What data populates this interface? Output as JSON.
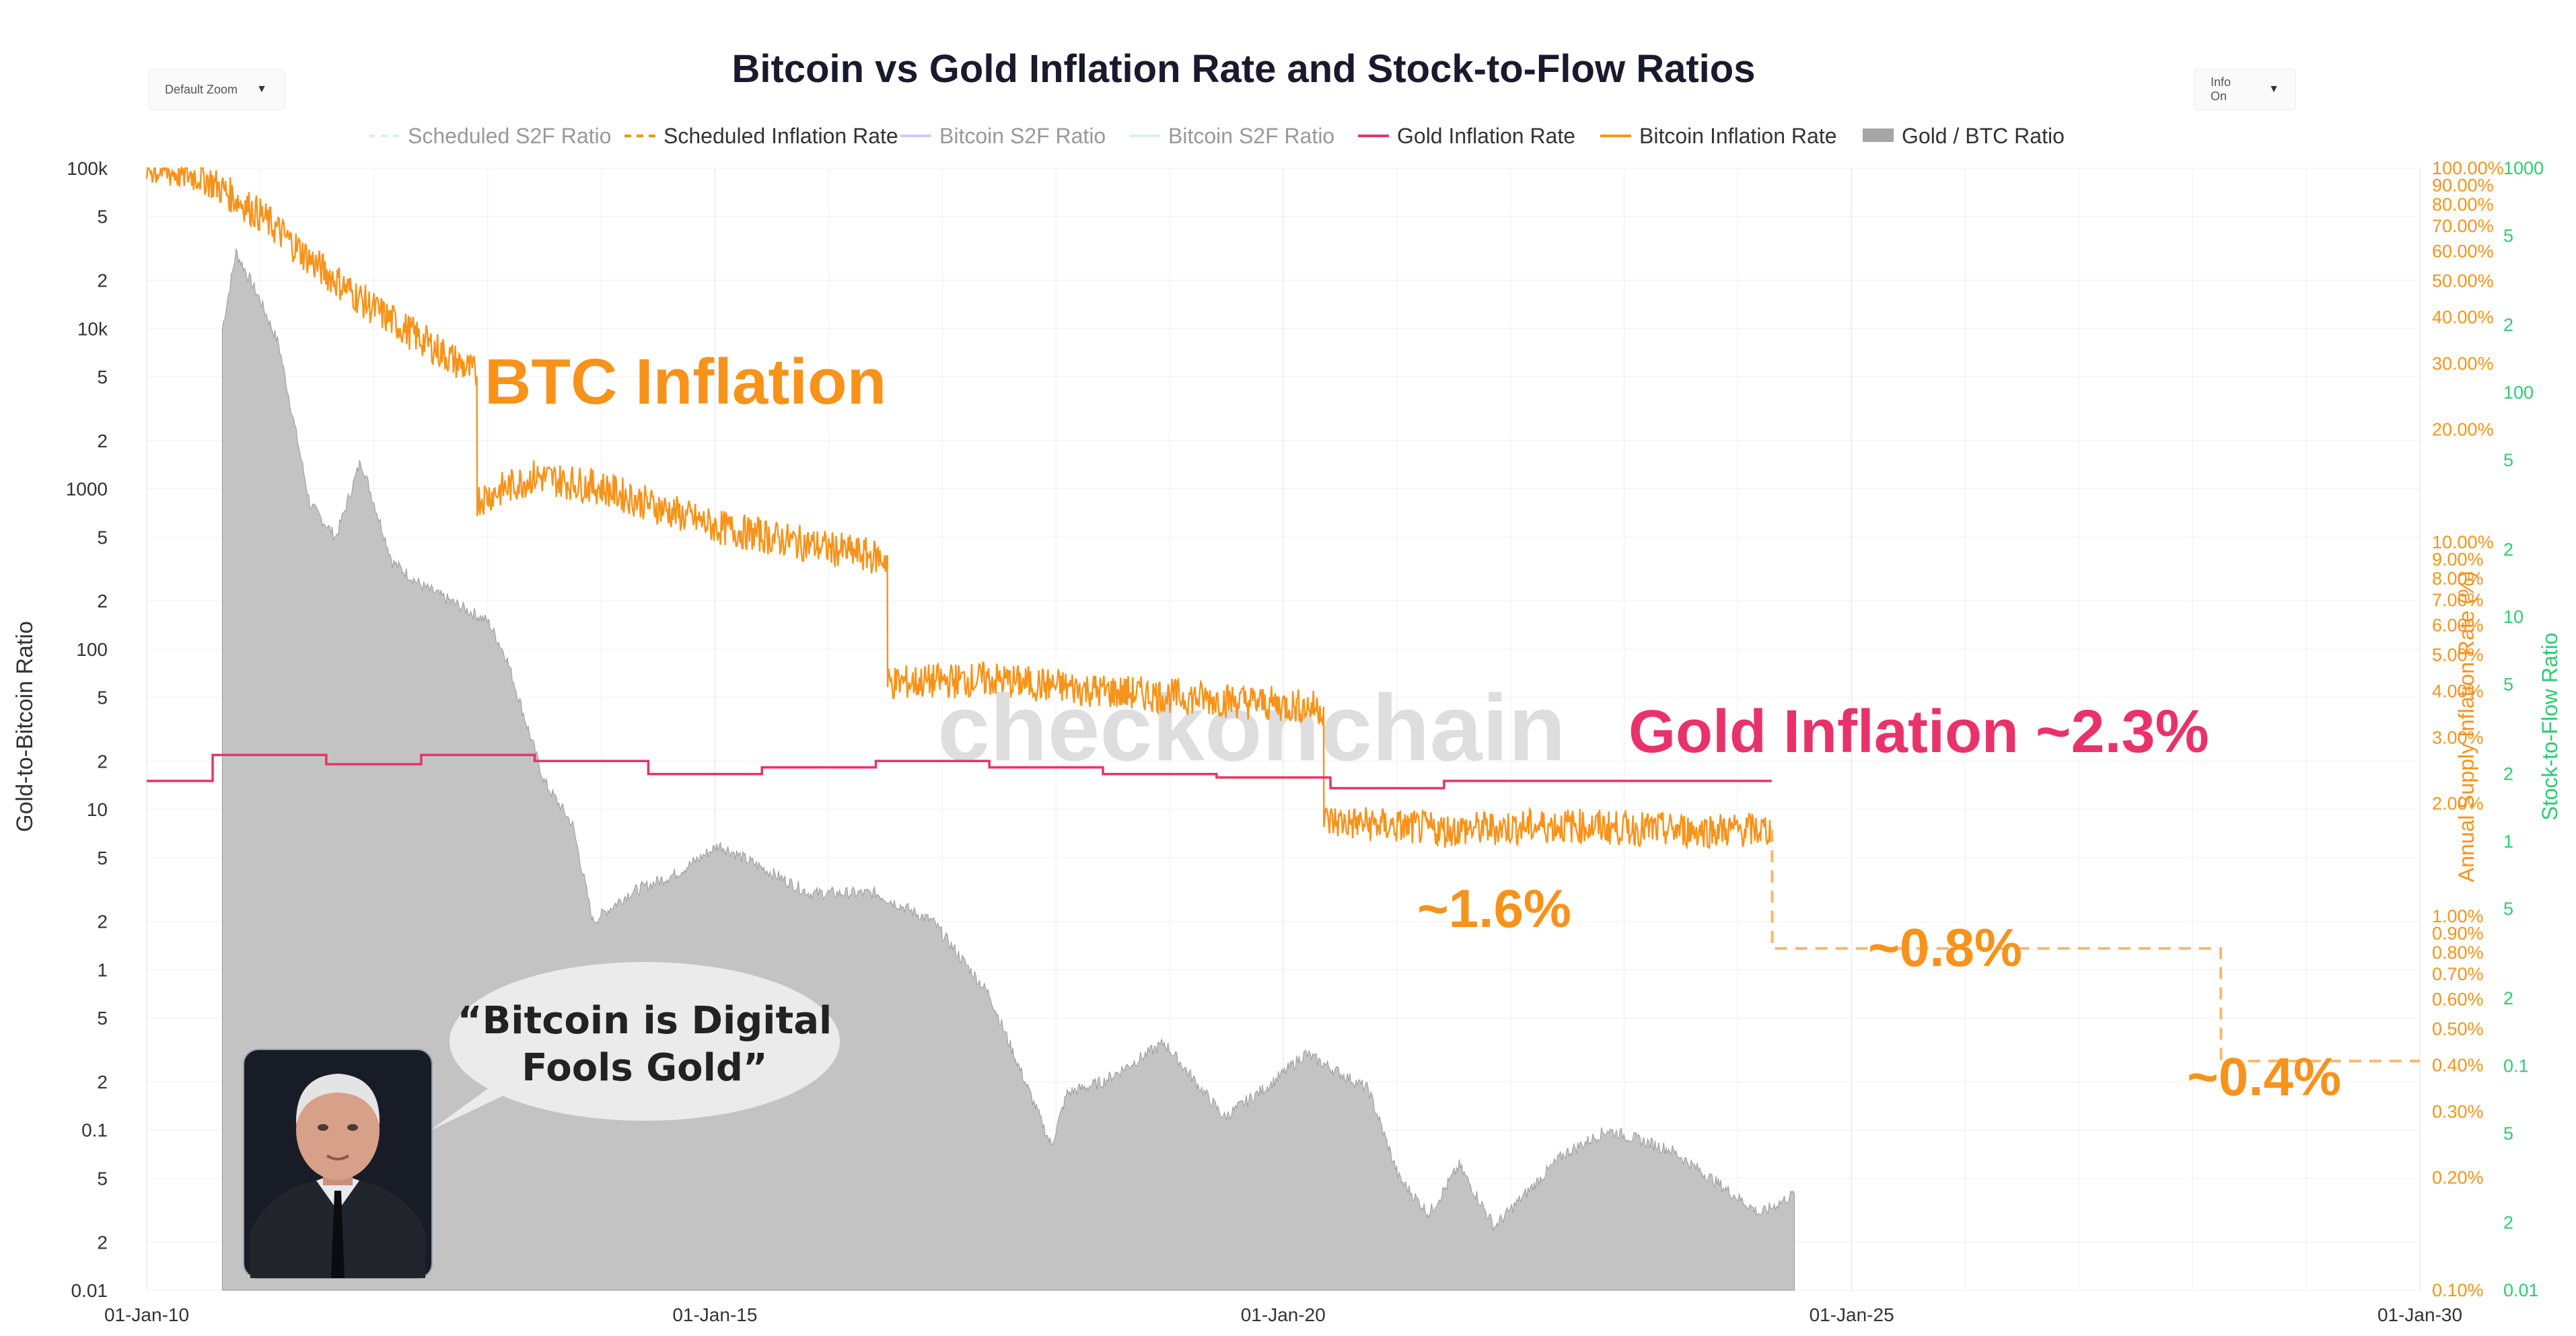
{
  "header": {
    "title": "Bitcoin vs Gold Inflation Rate and Stock-to-Flow Ratios",
    "zoom_label": "Default Zoom",
    "info_label": "Info On",
    "watermark": "checkonchain"
  },
  "legend": [
    {
      "name": "Scheduled S2F Ratio",
      "color": "#a8e6cf",
      "style": "dash",
      "active": false
    },
    {
      "name": "Scheduled Inflation Rate",
      "color": "#f7931a",
      "style": "dash",
      "active": true
    },
    {
      "name": "Bitcoin S2F Ratio",
      "color": "#9b8cf0",
      "style": "line",
      "active": false
    },
    {
      "name": "Bitcoin S2F Ratio",
      "color": "#a8e6cf",
      "style": "line",
      "active": false
    },
    {
      "name": "Gold Inflation Rate",
      "color": "#e8336a",
      "style": "line",
      "active": true
    },
    {
      "name": "Bitcoin Inflation Rate",
      "color": "#f7931a",
      "style": "line",
      "active": true
    },
    {
      "name": "Gold / BTC Ratio",
      "color": "#a6a6a6",
      "style": "area",
      "active": true
    }
  ],
  "annotations": {
    "btc_inflation": "BTC Inflation",
    "gold_inflation": "Gold Inflation ~2.3%",
    "pct_16": "~1.6%",
    "pct_08": "~0.8%",
    "pct_04": "~0.4%",
    "quote_line1": "“Bitcoin is Digital",
    "quote_line2": "Fools Gold”"
  },
  "colors": {
    "btc": "#f7931a",
    "gold_rate": "#e8336a",
    "ratio_fill": "#c3c3c3",
    "s2f_axis": "#2ecc71",
    "grid": "#efefef"
  },
  "chart_data": {
    "type": "line",
    "title": "Bitcoin vs Gold Inflation Rate and Stock-to-Flow Ratios",
    "x_ticks": [
      "01-Jan-10",
      "01-Jan-15",
      "01-Jan-20",
      "01-Jan-25",
      "01-Jan-30"
    ],
    "x_range": [
      "2010-01-01",
      "2030-01-01"
    ],
    "left_axis": {
      "label": "Gold-to-Bitcoin Ratio",
      "scale": "log",
      "range": [
        0.01,
        100000
      ],
      "ticks": [
        {
          "v": 100000,
          "t": "100k"
        },
        {
          "v": 50000,
          "t": "5"
        },
        {
          "v": 20000,
          "t": "2"
        },
        {
          "v": 10000,
          "t": "10k"
        },
        {
          "v": 5000,
          "t": "5"
        },
        {
          "v": 2000,
          "t": "2"
        },
        {
          "v": 1000,
          "t": "1000"
        },
        {
          "v": 500,
          "t": "5"
        },
        {
          "v": 200,
          "t": "2"
        },
        {
          "v": 100,
          "t": "100"
        },
        {
          "v": 50,
          "t": "5"
        },
        {
          "v": 20,
          "t": "2"
        },
        {
          "v": 10,
          "t": "10"
        },
        {
          "v": 5,
          "t": "5"
        },
        {
          "v": 2,
          "t": "2"
        },
        {
          "v": 1,
          "t": "1"
        },
        {
          "v": 0.5,
          "t": "5"
        },
        {
          "v": 0.2,
          "t": "2"
        },
        {
          "v": 0.1,
          "t": "0.1"
        },
        {
          "v": 0.05,
          "t": "5"
        },
        {
          "v": 0.02,
          "t": "2"
        },
        {
          "v": 0.01,
          "t": "0.01"
        }
      ]
    },
    "right_axis_inflation": {
      "label": "Annual Supply Inflation Rate (%)",
      "scale": "log",
      "range": [
        0.1,
        100
      ],
      "ticks": [
        {
          "v": 100,
          "t": "100.00%"
        },
        {
          "v": 90,
          "t": "90.00%"
        },
        {
          "v": 80,
          "t": "80.00%"
        },
        {
          "v": 70,
          "t": "70.00%"
        },
        {
          "v": 60,
          "t": "60.00%"
        },
        {
          "v": 50,
          "t": "50.00%"
        },
        {
          "v": 40,
          "t": "40.00%"
        },
        {
          "v": 30,
          "t": "30.00%"
        },
        {
          "v": 20,
          "t": "20.00%"
        },
        {
          "v": 10,
          "t": "10.00%"
        },
        {
          "v": 9,
          "t": "9.00%"
        },
        {
          "v": 8,
          "t": "8.00%"
        },
        {
          "v": 7,
          "t": "7.00%"
        },
        {
          "v": 6,
          "t": "6.00%"
        },
        {
          "v": 5,
          "t": "5.00%"
        },
        {
          "v": 4,
          "t": "4.00%"
        },
        {
          "v": 3,
          "t": "3.00%"
        },
        {
          "v": 2,
          "t": "2.00%"
        },
        {
          "v": 1,
          "t": "1.00%"
        },
        {
          "v": 0.9,
          "t": "0.90%"
        },
        {
          "v": 0.8,
          "t": "0.80%"
        },
        {
          "v": 0.7,
          "t": "0.70%"
        },
        {
          "v": 0.6,
          "t": "0.60%"
        },
        {
          "v": 0.5,
          "t": "0.50%"
        },
        {
          "v": 0.4,
          "t": "0.40%"
        },
        {
          "v": 0.3,
          "t": "0.30%"
        },
        {
          "v": 0.2,
          "t": "0.20%"
        },
        {
          "v": 0.1,
          "t": "0.10%"
        }
      ]
    },
    "right_axis_s2f": {
      "label": "Stock-to-Flow Ratio",
      "scale": "log",
      "range": [
        0.01,
        1000
      ],
      "ticks": [
        {
          "v": 1000,
          "t": "1000"
        },
        {
          "v": 500,
          "t": "5"
        },
        {
          "v": 200,
          "t": "2"
        },
        {
          "v": 100,
          "t": "100"
        },
        {
          "v": 50,
          "t": "5"
        },
        {
          "v": 20,
          "t": "2"
        },
        {
          "v": 10,
          "t": "10"
        },
        {
          "v": 5,
          "t": "5"
        },
        {
          "v": 2,
          "t": "2"
        },
        {
          "v": 1,
          "t": "1"
        },
        {
          "v": 0.5,
          "t": "5"
        },
        {
          "v": 0.2,
          "t": "2"
        },
        {
          "v": 0.1,
          "t": "0.1"
        },
        {
          "v": 0.05,
          "t": "5"
        },
        {
          "v": 0.02,
          "t": "2"
        },
        {
          "v": 0.01,
          "t": "0.01"
        }
      ]
    },
    "series": [
      {
        "name": "Gold / BTC Ratio",
        "type": "area",
        "axis": "left",
        "points": [
          [
            "2010-09-01",
            10000
          ],
          [
            "2010-10-15",
            30000
          ],
          [
            "2011-01-01",
            15000
          ],
          [
            "2011-03-01",
            8000
          ],
          [
            "2011-06-10",
            800
          ],
          [
            "2011-09-01",
            500
          ],
          [
            "2011-11-20",
            1500
          ],
          [
            "2012-03-01",
            350
          ],
          [
            "2012-06-01",
            250
          ],
          [
            "2012-09-01",
            200
          ],
          [
            "2013-01-01",
            150
          ],
          [
            "2013-03-01",
            90
          ],
          [
            "2013-04-10",
            50
          ],
          [
            "2013-07-01",
            15
          ],
          [
            "2013-10-01",
            8
          ],
          [
            "2013-12-05",
            2
          ],
          [
            "2014-04-01",
            3
          ],
          [
            "2014-09-01",
            4
          ],
          [
            "2015-01-15",
            6
          ],
          [
            "2015-11-01",
            3
          ],
          [
            "2016-06-01",
            3
          ],
          [
            "2016-12-01",
            2
          ],
          [
            "2017-06-01",
            0.7
          ],
          [
            "2017-12-17",
            0.08
          ],
          [
            "2018-02-06",
            0.17
          ],
          [
            "2018-06-01",
            0.2
          ],
          [
            "2018-12-15",
            0.35
          ],
          [
            "2019-06-26",
            0.12
          ],
          [
            "2019-12-01",
            0.2
          ],
          [
            "2020-03-12",
            0.3
          ],
          [
            "2020-10-01",
            0.18
          ],
          [
            "2021-01-08",
            0.05
          ],
          [
            "2021-04-14",
            0.03
          ],
          [
            "2021-07-20",
            0.06
          ],
          [
            "2021-11-10",
            0.025
          ],
          [
            "2022-06-18",
            0.07
          ],
          [
            "2022-11-09",
            0.1
          ],
          [
            "2023-06-01",
            0.075
          ],
          [
            "2024-03-14",
            0.03
          ],
          [
            "2024-07-01",
            0.04
          ]
        ]
      },
      {
        "name": "Bitcoin Inflation Rate",
        "type": "line",
        "axis": "inflation",
        "points": [
          [
            "2010-01-01",
            100
          ],
          [
            "2010-07-01",
            95
          ],
          [
            "2011-01-01",
            75
          ],
          [
            "2011-07-01",
            55
          ],
          [
            "2012-01-01",
            42
          ],
          [
            "2012-11-27",
            28
          ],
          [
            "2012-11-28",
            13
          ],
          [
            "2013-06-01",
            15
          ],
          [
            "2014-01-01",
            14
          ],
          [
            "2015-01-01",
            11
          ],
          [
            "2016-07-08",
            9
          ],
          [
            "2016-07-09",
            4.2
          ],
          [
            "2017-06-01",
            4.3
          ],
          [
            "2018-06-01",
            4.0
          ],
          [
            "2019-06-01",
            3.8
          ],
          [
            "2020-05-10",
            3.6
          ],
          [
            "2020-05-11",
            1.8
          ],
          [
            "2021-06-01",
            1.7
          ],
          [
            "2022-06-01",
            1.75
          ],
          [
            "2023-06-01",
            1.7
          ],
          [
            "2024-04-19",
            1.7
          ]
        ]
      },
      {
        "name": "Gold Inflation Rate",
        "type": "step",
        "axis": "inflation",
        "points": [
          [
            "2010-01-01",
            2.3
          ],
          [
            "2010-08-01",
            2.7
          ],
          [
            "2011-08-01",
            2.55
          ],
          [
            "2012-06-01",
            2.7
          ],
          [
            "2013-06-01",
            2.6
          ],
          [
            "2014-06-01",
            2.4
          ],
          [
            "2015-06-01",
            2.5
          ],
          [
            "2016-06-01",
            2.6
          ],
          [
            "2017-06-01",
            2.5
          ],
          [
            "2018-06-01",
            2.4
          ],
          [
            "2019-06-01",
            2.35
          ],
          [
            "2020-06-01",
            2.2
          ],
          [
            "2021-06-01",
            2.3
          ],
          [
            "2022-06-01",
            2.3
          ],
          [
            "2023-06-01",
            2.3
          ],
          [
            "2024-04-19",
            2.3
          ]
        ]
      },
      {
        "name": "Scheduled Inflation Rate",
        "type": "dashed-step",
        "axis": "inflation",
        "points": [
          [
            "2024-04-20",
            1.7
          ],
          [
            "2024-04-21",
            0.82
          ],
          [
            "2028-04-01",
            0.82
          ],
          [
            "2028-04-02",
            0.41
          ],
          [
            "2030-01-01",
            0.41
          ]
        ]
      }
    ]
  }
}
